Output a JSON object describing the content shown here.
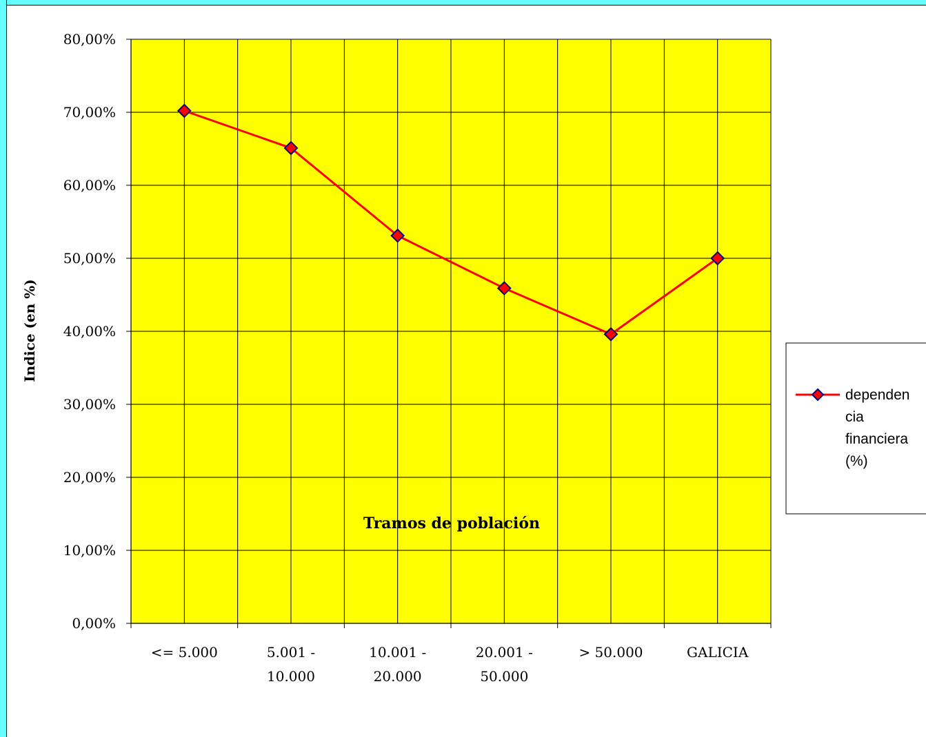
{
  "colors": {
    "plot_background": "#ffff00",
    "series_line": "#ff0000",
    "marker_fill": "#ff0000",
    "marker_stroke": "#000080",
    "grid": "#000000",
    "frame_accent": "#66ffff"
  },
  "chart_data": {
    "type": "line",
    "title": "",
    "xlabel": "Tramos de población",
    "ylabel": "Indice (en %)",
    "ylim": [
      0,
      80
    ],
    "y_ticks": [
      "0,00%",
      "10,00%",
      "20,00%",
      "30,00%",
      "40,00%",
      "50,00%",
      "60,00%",
      "70,00%",
      "80,00%"
    ],
    "categories": [
      [
        "<= 5.000"
      ],
      [
        "5.001 -",
        "10.000"
      ],
      [
        "10.001 -",
        "20.000"
      ],
      [
        "20.001 -",
        "50.000"
      ],
      [
        "> 50.000"
      ],
      [
        "GALICIA"
      ]
    ],
    "series": [
      {
        "name": [
          "dependen",
          "cia",
          "financiera",
          "(%)"
        ],
        "values": [
          70.2,
          65.1,
          53.1,
          45.9,
          39.6,
          50.0
        ],
        "marker": "diamond"
      }
    ],
    "grid": true,
    "legend_position": "right"
  }
}
